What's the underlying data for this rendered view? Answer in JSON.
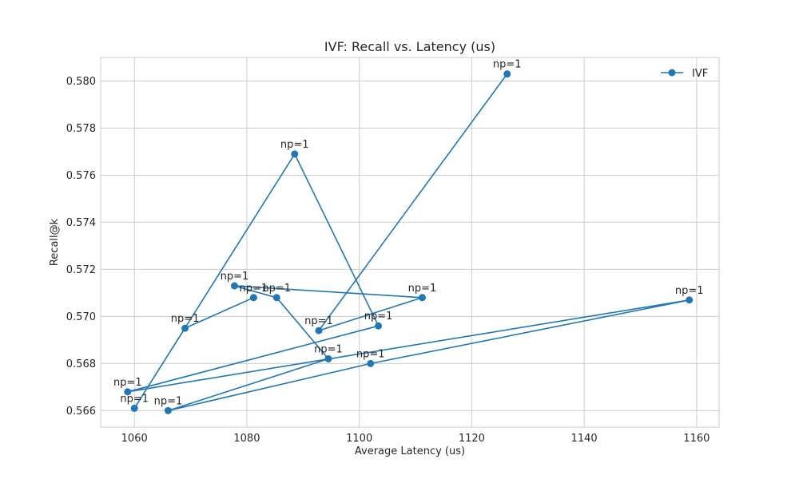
{
  "chart_data": {
    "type": "line",
    "title": "IVF: Recall vs. Latency (us)",
    "xlabel": "Average Latency (us)",
    "ylabel": "Recall@k",
    "xlim": [
      1054,
      1164
    ],
    "ylim": [
      0.5653,
      0.581
    ],
    "xticks": [
      1060,
      1080,
      1100,
      1120,
      1140,
      1160
    ],
    "yticks": [
      0.566,
      0.568,
      0.57,
      0.572,
      0.574,
      0.576,
      0.578,
      0.58
    ],
    "grid": true,
    "legend_position": "upper-right",
    "series": [
      {
        "name": "IVF",
        "color": "#1f77b4",
        "marker": "circle",
        "points": [
          {
            "x": 1126.3,
            "y": 0.5803,
            "label": "np=1"
          },
          {
            "x": 1092.8,
            "y": 0.5694,
            "label": "np=1"
          },
          {
            "x": 1111.2,
            "y": 0.5708,
            "label": "np=1"
          },
          {
            "x": 1077.8,
            "y": 0.5713,
            "label": "np=1"
          },
          {
            "x": 1085.3,
            "y": 0.5708,
            "label": "np=1"
          },
          {
            "x": 1094.5,
            "y": 0.5682,
            "label": "np=1"
          },
          {
            "x": 1066.0,
            "y": 0.566,
            "label": "np=1"
          },
          {
            "x": 1102.0,
            "y": 0.568,
            "label": "np=1"
          },
          {
            "x": 1158.7,
            "y": 0.5707,
            "label": "np=1"
          },
          {
            "x": 1058.8,
            "y": 0.5668,
            "label": "np=1"
          },
          {
            "x": 1103.4,
            "y": 0.5696,
            "label": "np=1"
          },
          {
            "x": 1088.5,
            "y": 0.5769,
            "label": "np=1"
          },
          {
            "x": 1060.0,
            "y": 0.5661,
            "label": "np=1"
          },
          {
            "x": 1069.0,
            "y": 0.5695,
            "label": "np=1"
          },
          {
            "x": 1081.2,
            "y": 0.5708,
            "label": "np=1"
          }
        ]
      }
    ]
  }
}
